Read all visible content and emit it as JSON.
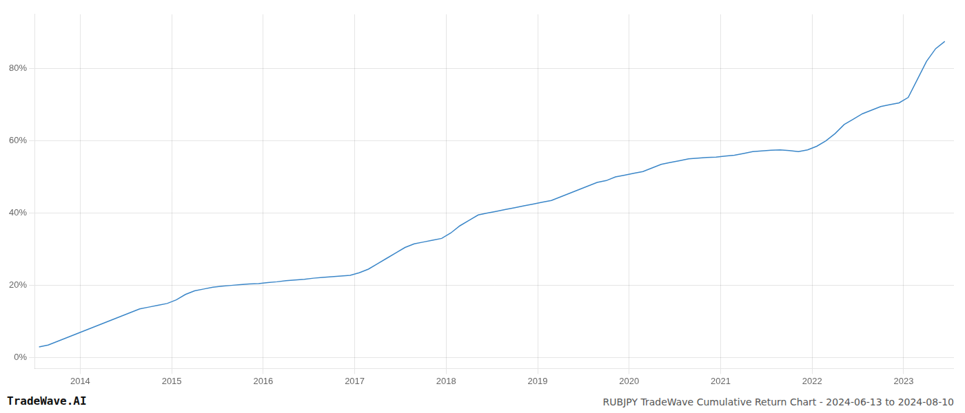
{
  "chart_data": {
    "type": "line",
    "title": "RUBJPY TradeWave Cumulative Return Chart - 2024-06-13 to 2024-08-10",
    "annotations": [
      "TradeWave.AI"
    ],
    "color": "#3a86c8",
    "grid": true,
    "x": [
      2013.55,
      2013.65,
      2013.75,
      2013.85,
      2013.95,
      2014.05,
      2014.15,
      2014.25,
      2014.35,
      2014.45,
      2014.55,
      2014.65,
      2014.75,
      2014.85,
      2014.95,
      2015.05,
      2015.15,
      2015.25,
      2015.35,
      2015.45,
      2015.55,
      2015.65,
      2015.75,
      2015.85,
      2015.95,
      2016.05,
      2016.15,
      2016.25,
      2016.35,
      2016.45,
      2016.55,
      2016.65,
      2016.75,
      2016.85,
      2016.95,
      2017.05,
      2017.15,
      2017.25,
      2017.35,
      2017.45,
      2017.55,
      2017.65,
      2017.75,
      2017.85,
      2017.95,
      2018.05,
      2018.15,
      2018.25,
      2018.35,
      2018.45,
      2018.55,
      2018.65,
      2018.75,
      2018.85,
      2018.95,
      2019.05,
      2019.15,
      2019.25,
      2019.35,
      2019.45,
      2019.55,
      2019.65,
      2019.75,
      2019.85,
      2019.95,
      2020.05,
      2020.15,
      2020.25,
      2020.35,
      2020.45,
      2020.55,
      2020.65,
      2020.75,
      2020.85,
      2020.95,
      2021.05,
      2021.15,
      2021.25,
      2021.35,
      2021.45,
      2021.55,
      2021.65,
      2021.75,
      2021.85,
      2021.95,
      2022.05,
      2022.15,
      2022.25,
      2022.35,
      2022.45,
      2022.55,
      2022.65,
      2022.75,
      2022.85,
      2022.95,
      2023.05,
      2023.15,
      2023.25,
      2023.35,
      2023.45
    ],
    "values": [
      3.0,
      3.5,
      4.5,
      5.5,
      6.5,
      7.5,
      8.5,
      9.5,
      10.5,
      11.5,
      12.5,
      13.5,
      14.0,
      14.5,
      15.0,
      16.0,
      17.5,
      18.5,
      19.0,
      19.5,
      19.8,
      20.0,
      20.2,
      20.4,
      20.5,
      20.8,
      21.0,
      21.3,
      21.5,
      21.7,
      22.0,
      22.2,
      22.4,
      22.6,
      22.8,
      23.5,
      24.5,
      26.0,
      27.5,
      29.0,
      30.5,
      31.5,
      32.0,
      32.5,
      33.0,
      34.5,
      36.5,
      38.0,
      39.5,
      40.0,
      40.5,
      41.0,
      41.5,
      42.0,
      42.5,
      43.0,
      43.5,
      44.5,
      45.5,
      46.5,
      47.5,
      48.5,
      49.0,
      50.0,
      50.5,
      51.0,
      51.5,
      52.5,
      53.5,
      54.0,
      54.5,
      55.0,
      55.2,
      55.4,
      55.5,
      55.8,
      56.0,
      56.5,
      57.0,
      57.2,
      57.4,
      57.5,
      57.3,
      57.0,
      57.5,
      58.5,
      60.0,
      62.0,
      64.5,
      66.0,
      67.5,
      68.5,
      69.5,
      70.0,
      70.5,
      72.0,
      77.0,
      82.0,
      85.5,
      87.5
    ],
    "xlim": [
      2013.5,
      2023.55
    ],
    "xticks": [
      2014,
      2015,
      2016,
      2017,
      2018,
      2019,
      2020,
      2021,
      2022,
      2023
    ],
    "ylim": [
      -3,
      95
    ],
    "yticks": [
      {
        "value": 0,
        "label": "0%"
      },
      {
        "value": 20,
        "label": "20%"
      },
      {
        "value": 40,
        "label": "40%"
      },
      {
        "value": 60,
        "label": "60%"
      },
      {
        "value": 80,
        "label": "80%"
      }
    ]
  }
}
